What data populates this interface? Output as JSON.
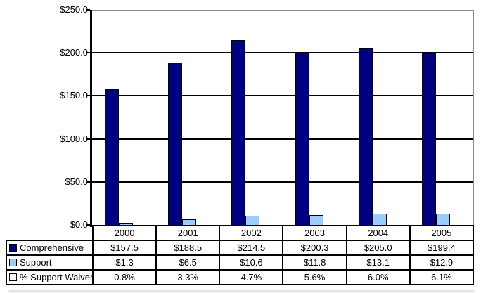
{
  "chart_data": {
    "type": "bar",
    "title": "",
    "xlabel": "",
    "ylabel": "",
    "categories": [
      "2000",
      "2001",
      "2002",
      "2003",
      "2004",
      "2005"
    ],
    "series": [
      {
        "name": "Comprehensive",
        "color": "#000080",
        "values": [
          157.5,
          188.5,
          214.5,
          200.3,
          205.0,
          199.4
        ]
      },
      {
        "name": "Support",
        "color": "#99CCFF",
        "values": [
          1.3,
          6.5,
          10.6,
          11.8,
          13.1,
          12.9
        ]
      },
      {
        "name": "% Support Waiver",
        "color": "#FFFFFF",
        "values": [
          0.8,
          3.3,
          4.7,
          5.6,
          6.0,
          6.1
        ]
      }
    ],
    "bars_visible": [
      true,
      true,
      false
    ],
    "ylim": [
      0,
      250
    ],
    "y_ticks": [
      "$250.0",
      "$200.0",
      "$150.0",
      "$100.0",
      "$50.0",
      "$0.0"
    ],
    "grid": true,
    "legend_position": "table-left"
  },
  "table": {
    "columns": [
      "2000",
      "2001",
      "2002",
      "2003",
      "2004",
      "2005"
    ],
    "rows": [
      {
        "label": "Comprehensive",
        "swatch": "#000080",
        "values": [
          "$157.5",
          "$188.5",
          "$214.5",
          "$200.3",
          "$205.0",
          "$199.4"
        ]
      },
      {
        "label": "Support",
        "swatch": "#99CCFF",
        "values": [
          "$1.3",
          "$6.5",
          "$10.6",
          "$11.8",
          "$13.1",
          "$12.9"
        ]
      },
      {
        "label": "% Support Waiver",
        "swatch": "#FFFFFF",
        "values": [
          "0.8%",
          "3.3%",
          "4.7%",
          "5.6%",
          "6.0%",
          "6.1%"
        ]
      }
    ]
  },
  "colors": {
    "comprehensive_bar": "#000080",
    "support_bar": "#99CCFF",
    "waiver_swatch": "#FFFFFF",
    "gridline": "#000000",
    "plot_border": "#8c8c8c",
    "text": "#000000",
    "background": "#ffffff"
  }
}
